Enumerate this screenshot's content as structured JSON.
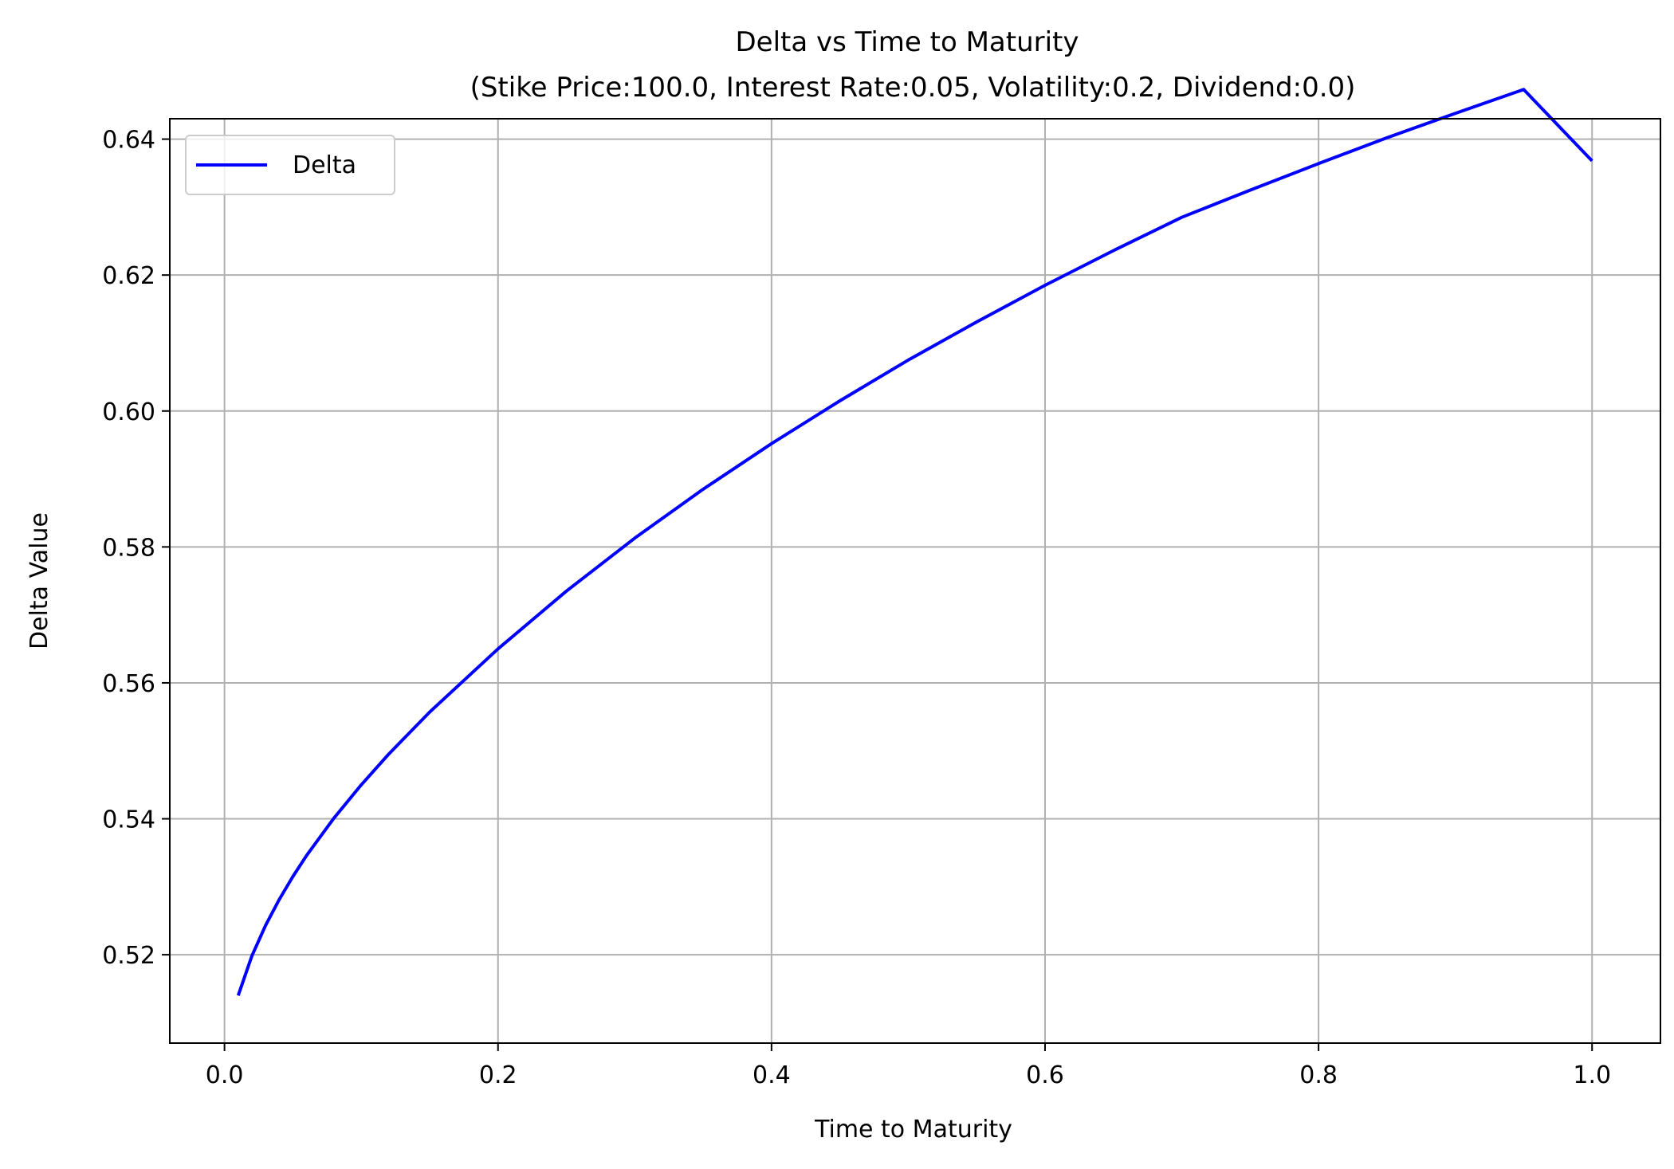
{
  "chart_data": {
    "type": "line",
    "title": "Delta vs Time to Maturity",
    "subtitle": "(Stike Price:100.0, Interest Rate:0.05, Volatility:0.2, Dividend:0.0)",
    "xlabel": "Time to Maturity",
    "ylabel": "Delta Value",
    "xlim": [
      -0.04,
      1.05
    ],
    "ylim": [
      0.507,
      0.643
    ],
    "x_ticks": [
      0.0,
      0.2,
      0.4,
      0.6,
      0.8,
      1.0
    ],
    "x_tick_labels": [
      "0.0",
      "0.2",
      "0.4",
      "0.6",
      "0.8",
      "1.0"
    ],
    "y_ticks": [
      0.52,
      0.54,
      0.56,
      0.58,
      0.6,
      0.62,
      0.64
    ],
    "y_tick_labels": [
      "0.52",
      "0.54",
      "0.56",
      "0.58",
      "0.60",
      "0.62",
      "0.64"
    ],
    "grid": true,
    "legend_position": "top-left",
    "series": [
      {
        "name": "Delta",
        "color": "#0000ff",
        "x": [
          0.01,
          0.02,
          0.03,
          0.04,
          0.05,
          0.06,
          0.08,
          0.1,
          0.12,
          0.15,
          0.2,
          0.25,
          0.3,
          0.35,
          0.4,
          0.45,
          0.5,
          0.55,
          0.6,
          0.65,
          0.7,
          0.75,
          0.8,
          0.85,
          0.9,
          0.95,
          1.0
        ],
        "y": [
          0.514,
          0.5198,
          0.5243,
          0.5281,
          0.5315,
          0.5346,
          0.5401,
          0.545,
          0.5495,
          0.5557,
          0.565,
          0.5735,
          0.5813,
          0.5885,
          0.5952,
          0.6015,
          0.6075,
          0.6131,
          0.6185,
          0.6236,
          0.6285,
          0.6325,
          0.6364,
          0.6402,
          0.6438,
          0.6473,
          0.6368
        ]
      }
    ]
  }
}
